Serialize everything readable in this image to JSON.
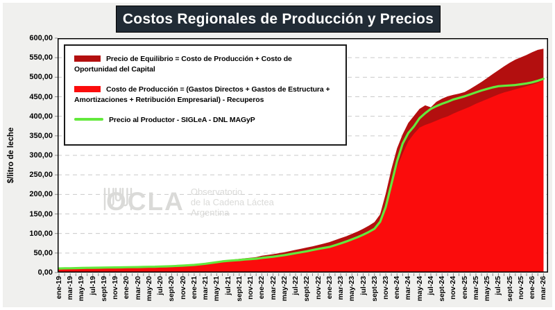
{
  "title": "Costos Regionales de Producción y Precios",
  "y_axis": {
    "title": "$/litro de leche",
    "ticks": [
      "600,00",
      "550,00",
      "500,00",
      "450,00",
      "400,00",
      "350,00",
      "300,00",
      "250,00",
      "200,00",
      "150,00",
      "100,00",
      "50,00",
      "0,00"
    ]
  },
  "legend": {
    "equilibrio": "Precio de Equilibrio = Costo de Producción + Costo de Oportunidad del Capital",
    "costo": "Costo de Producción = (Gastos Directos + Gastos de Estructura + Amortizaciones + Retribución Empresarial) - Recuperos",
    "productor": "Precio al Productor - SIGLeA - DNL MAGyP"
  },
  "watermark": {
    "brand": "OCLA",
    "line1": "Observatorio",
    "line2": "de la Cadena Láctea",
    "line3": "Argentina"
  },
  "colors": {
    "equilibrio": "#b30f0f",
    "costo": "#fb0c0c",
    "productor": "#63e93c",
    "title_bg": "#212b35",
    "grid": "#c9c9c9",
    "background": "#f0f0ee"
  },
  "chart_data": {
    "type": "area",
    "title": "Costos Regionales de Producción y Precios",
    "ylabel": "$/litro de leche",
    "ylim": [
      0,
      600
    ],
    "y_step": 50,
    "grid": "horizontal dashed every 50",
    "legend_position": "top-left inside plot",
    "x_monthly_range": "ene-19 to mar-26 (monthly points, labels every 2 months)",
    "x_labels": [
      "ene-19",
      "mar-19",
      "may-19",
      "jul-19",
      "sept-19",
      "nov-19",
      "ene-20",
      "mar-20",
      "may-20",
      "jul-20",
      "sept-20",
      "nov-20",
      "ene-21",
      "mar-21",
      "may-21",
      "jul-21",
      "sept-21",
      "nov-21",
      "ene-22",
      "mar-22",
      "may-22",
      "jul-22",
      "sept-22",
      "nov-22",
      "ene-23",
      "mar-23",
      "may-23",
      "jul-23",
      "sept-23",
      "nov-23",
      "ene-24",
      "mar-24",
      "may-24",
      "jul-24",
      "sept-24",
      "nov-24",
      "ene-25",
      "mar-25",
      "may-25",
      "jul-25",
      "sept-25",
      "nov-25",
      "ene-26",
      "mar-26"
    ],
    "points_per_label": 2,
    "series": [
      {
        "name": "Precio de Equilibrio = Costo de Producción + Costo de Oportunidad del Capital",
        "render": "area",
        "color": "#b30f0f",
        "values": [
          10,
          10.3,
          10.5,
          10.8,
          11.3,
          11.5,
          11.8,
          12,
          12.3,
          12.6,
          12.8,
          13,
          13.3,
          13.6,
          14,
          14.3,
          14.7,
          15.1,
          15.6,
          16.2,
          17,
          17.8,
          18.8,
          19.8,
          21,
          22.5,
          24.5,
          26.5,
          28.5,
          30.5,
          32,
          33.5,
          35,
          36.5,
          38,
          39.5,
          43,
          45,
          47,
          49.5,
          52,
          55,
          58,
          61,
          64,
          67,
          70.5,
          74,
          78,
          83,
          88,
          93,
          99,
          105,
          112,
          120,
          129,
          149,
          202,
          264,
          318,
          354,
          383,
          401,
          419,
          428,
          423,
          437,
          445,
          451,
          455,
          458,
          462,
          470,
          479,
          488,
          498,
          508,
          518,
          528,
          537,
          545,
          551,
          557,
          564,
          570,
          573
        ]
      },
      {
        "name": "Costo de Producción = (Gastos Directos + Gastos de Estructura + Amortizaciones + Retribución Empresarial) - Recuperos",
        "render": "area",
        "color": "#fb0c0c",
        "values": [
          9.5,
          9.8,
          10,
          10.3,
          10.8,
          11,
          11.3,
          11.5,
          11.8,
          12,
          12.3,
          12.5,
          12.8,
          13.1,
          13.4,
          13.7,
          14,
          14.4,
          14.8,
          15.3,
          15.9,
          16.6,
          17.4,
          18.2,
          19,
          20.5,
          22,
          24,
          26,
          28,
          29.5,
          30.5,
          31.5,
          33,
          34.5,
          35.5,
          36.5,
          38,
          39.5,
          41,
          43,
          45.5,
          48,
          50.5,
          53,
          56,
          59,
          61.5,
          64,
          68,
          72,
          77,
          83,
          88,
          95,
          102,
          110,
          128,
          162,
          218,
          270,
          305,
          336,
          355,
          371,
          378,
          383,
          389,
          395,
          400,
          407,
          413,
          419,
          425,
          432,
          438,
          444,
          450,
          456,
          461,
          465,
          469,
          473,
          477,
          481,
          486,
          492
        ]
      },
      {
        "name": "Precio al Productor - SIGLeA - DNL MAGyP",
        "render": "line",
        "color": "#63e93c",
        "values": [
          10.5,
          10.8,
          11,
          11.3,
          11.8,
          12,
          12.2,
          12.5,
          12.8,
          13,
          13.2,
          13.4,
          13.6,
          13.8,
          14.1,
          14.4,
          14.7,
          15,
          15.4,
          15.8,
          16.4,
          17,
          17.8,
          18.6,
          19.5,
          21,
          22.5,
          24.5,
          26.5,
          28.5,
          30,
          31,
          32,
          33.5,
          34.5,
          35.5,
          37.5,
          39,
          40.5,
          42.5,
          44.5,
          47,
          49.5,
          52,
          54.5,
          57.5,
          60.5,
          63,
          65.5,
          70,
          74.5,
          79.5,
          85,
          90.5,
          97,
          104,
          112,
          130,
          168,
          226,
          285,
          330,
          357,
          374,
          395,
          408,
          419,
          426,
          432,
          437,
          443,
          447,
          451,
          456,
          461,
          466,
          470,
          474,
          477,
          478,
          479,
          480,
          482,
          484,
          487,
          491,
          496
        ]
      }
    ]
  }
}
